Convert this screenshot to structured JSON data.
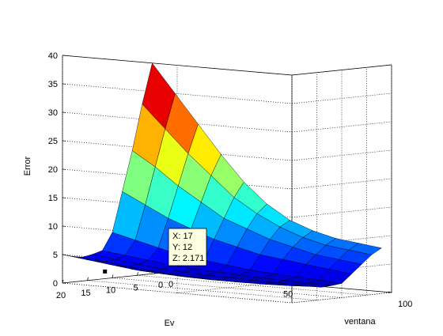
{
  "chart_data": {
    "type": "surface",
    "title": "",
    "xlabel": "Ev",
    "ylabel": "ventana",
    "zlabel": "Error",
    "x_ticks": [
      "0",
      "5",
      "10",
      "15",
      "20"
    ],
    "y_ticks": [
      "0",
      "50",
      "100"
    ],
    "z_ticks": [
      "0",
      "5",
      "10",
      "15",
      "20",
      "25",
      "30",
      "35",
      "40"
    ],
    "xlim": [
      0,
      20
    ],
    "ylim": [
      0,
      100
    ],
    "zlim": [
      0,
      40
    ],
    "grid": true,
    "colormap": "jet",
    "surface": {
      "ev": [
        2,
        4,
        6,
        8,
        10,
        12,
        14,
        16,
        18,
        20
      ],
      "ventana": [
        0,
        10,
        20,
        30,
        40,
        50,
        60,
        70,
        80,
        90,
        100
      ],
      "error": [
        [
          37,
          32,
          27,
          22,
          17.5,
          14,
          11.5,
          10,
          9,
          8.5,
          8
        ],
        [
          30,
          26,
          22,
          18.5,
          15,
          12.5,
          10.5,
          9,
          8,
          7.5,
          7
        ],
        [
          22,
          19.5,
          16.5,
          14,
          11.5,
          10,
          8.5,
          7.5,
          6.5,
          6,
          5.5
        ],
        [
          15,
          13,
          11,
          9.5,
          8,
          7,
          6,
          5.5,
          5,
          4.5,
          4
        ],
        [
          8,
          7,
          6,
          5,
          4.5,
          4,
          3.5,
          3.2,
          3,
          2.8,
          2.5
        ],
        [
          5,
          4.5,
          4,
          3.5,
          3.2,
          3,
          2.8,
          2.6,
          2.5,
          2.4,
          2.3
        ],
        [
          4.5,
          4,
          3.5,
          3,
          2.8,
          2.6,
          2.5,
          2.4,
          2.3,
          2.2,
          2.2
        ],
        [
          4.2,
          3.8,
          3.2,
          2.8,
          2.5,
          2.3,
          2.2,
          2.171,
          2.2,
          2.3,
          2.5
        ],
        [
          4.5,
          4,
          3.5,
          3,
          2.8,
          2.6,
          2.5,
          2.5,
          2.6,
          2.8,
          3
        ],
        [
          5,
          4.5,
          4,
          3.5,
          3.2,
          3,
          3,
          3,
          3.1,
          3.3,
          3.5
        ]
      ]
    },
    "datatip": {
      "x": 17,
      "y": 12,
      "z": 2.171,
      "label_x": "X: 17",
      "label_y": "Y: 12",
      "label_z": "Z: 2.171"
    }
  }
}
